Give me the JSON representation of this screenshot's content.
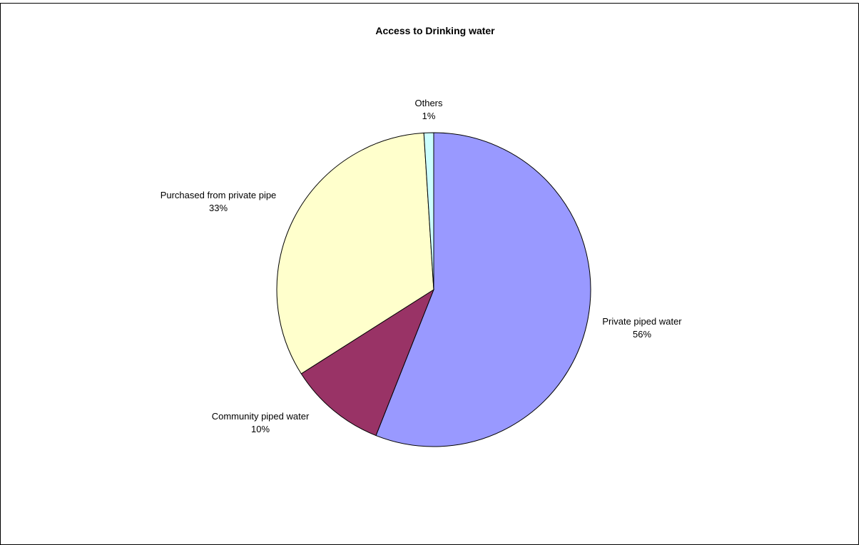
{
  "caption": "",
  "chart_data": {
    "type": "pie",
    "title": "Access to Drinking water",
    "slices": [
      {
        "name": "Private piped water",
        "value": 56,
        "label": "56%",
        "color": "#9999ff"
      },
      {
        "name": "Community piped water",
        "value": 10,
        "label": "10%",
        "color": "#993366"
      },
      {
        "name": "Purchased from private pipe",
        "value": 33,
        "label": "33%",
        "color": "#ffffcc"
      },
      {
        "name": "Others",
        "value": 1,
        "label": "1%",
        "color": "#ccffff"
      }
    ],
    "start": "12 o'clock",
    "direction": "clockwise"
  }
}
